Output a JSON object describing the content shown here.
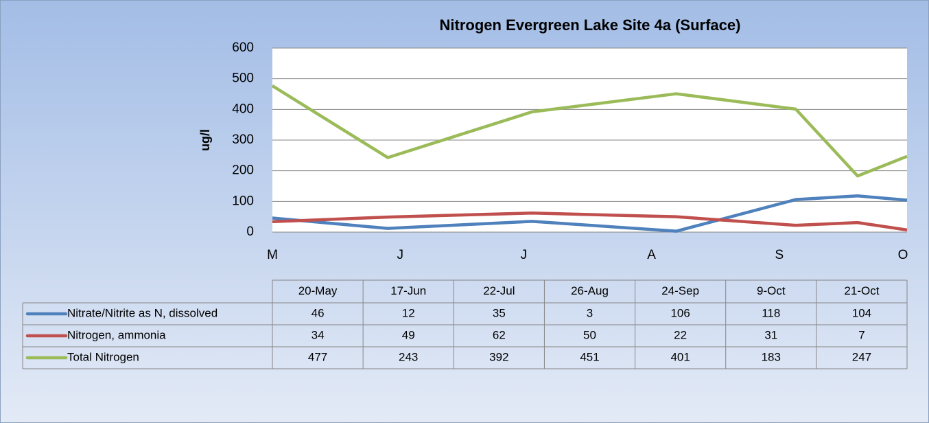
{
  "chart_data": {
    "type": "line",
    "title": "Nitrogen Evergreen Lake Site 4a (Surface)",
    "y_label": "ug/l",
    "x": [
      "20-May",
      "17-Jun",
      "22-Jul",
      "26-Aug",
      "24-Sep",
      "9-Oct",
      "21-Oct"
    ],
    "xlim": [
      "20-May",
      "21-Oct"
    ],
    "xticks": [
      {
        "value": "20-May",
        "label": "M"
      },
      {
        "value": "20-Jun",
        "label": "J"
      },
      {
        "value": "20-Jul",
        "label": "J"
      },
      {
        "value": "20-Aug",
        "label": "A"
      },
      {
        "value": "20-Sep",
        "label": "S"
      },
      {
        "value": "20-Oct",
        "label": "O"
      }
    ],
    "ylim": [
      0,
      600
    ],
    "yticks": [
      0,
      100,
      200,
      300,
      400,
      500,
      600
    ],
    "grid": true,
    "series": [
      {
        "name": "Nitrate/Nitrite as N, dissolved",
        "color": "#4f81bd",
        "values": [
          46,
          12,
          35,
          3,
          106,
          118,
          104
        ]
      },
      {
        "name": "Nitrogen, ammonia",
        "color": "#c0504d",
        "values": [
          34,
          49,
          62,
          50,
          22,
          31,
          7
        ]
      },
      {
        "name": "Total Nitrogen",
        "color": "#9bbb59",
        "values": [
          477,
          243,
          392,
          451,
          401,
          183,
          247
        ]
      }
    ]
  }
}
